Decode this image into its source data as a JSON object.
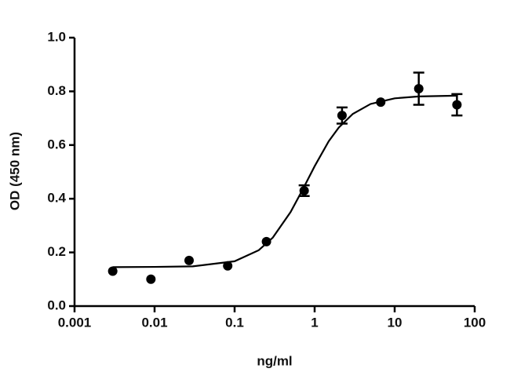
{
  "chart_data": {
    "type": "scatter",
    "xlabel": "ng/ml",
    "ylabel": "OD (450 nm)",
    "xscale": "log",
    "xlim": [
      0.001,
      100
    ],
    "xticks": [
      0.001,
      0.01,
      0.1,
      1,
      10,
      100
    ],
    "ylim": [
      0,
      1
    ],
    "yticks": [
      {
        "value": 0,
        "label": "0.0"
      },
      0.2,
      0.4,
      0.6,
      0.8,
      {
        "value": 1,
        "label": "1.0"
      }
    ],
    "series": [
      {
        "type": "scatter",
        "color": "#000000",
        "x": [
          0.003,
          0.009,
          0.027,
          0.082,
          0.25,
          0.74,
          2.2,
          6.7,
          20,
          60
        ],
        "values": [
          0.13,
          0.1,
          0.17,
          0.15,
          0.24,
          0.43,
          0.71,
          0.76,
          0.81,
          0.75
        ],
        "errors": [
          0,
          0,
          0,
          0,
          0,
          0.02,
          0.03,
          0,
          0.06,
          0.04
        ]
      },
      {
        "type": "line",
        "color": "#000000",
        "x": [
          0.003,
          0.01,
          0.03,
          0.1,
          0.2,
          0.3,
          0.5,
          0.7,
          1,
          1.5,
          2,
          3,
          5,
          10,
          20,
          60
        ],
        "values": [
          0.145,
          0.146,
          0.148,
          0.167,
          0.208,
          0.255,
          0.35,
          0.431,
          0.521,
          0.614,
          0.665,
          0.716,
          0.753,
          0.774,
          0.781,
          0.784
        ]
      }
    ]
  }
}
